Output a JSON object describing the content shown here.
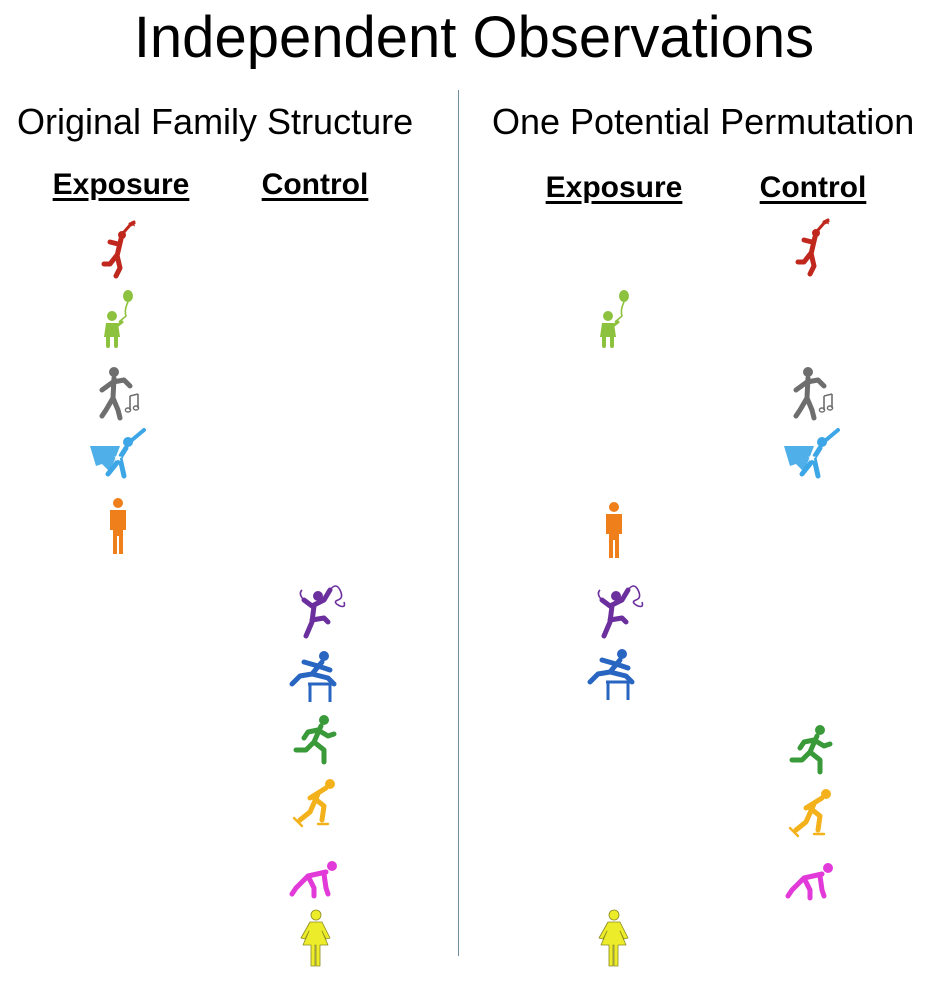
{
  "title": "Independent Observations",
  "panels": [
    {
      "title": "Original Family Structure",
      "columns": [
        "Exposure",
        "Control"
      ],
      "members": [
        {
          "icon": "jumping-star-person-icon",
          "color": "#c0281e",
          "column": 0
        },
        {
          "icon": "child-balloon-icon",
          "color": "#8dc23f",
          "column": 0
        },
        {
          "icon": "dancing-music-person-icon",
          "color": "#6e6e6e",
          "column": 0
        },
        {
          "icon": "superhero-flying-icon",
          "color": "#3ca6e6",
          "column": 0
        },
        {
          "icon": "standing-man-icon",
          "color": "#ef7f1a",
          "column": 0
        },
        {
          "icon": "ribbon-gymnast-icon",
          "color": "#6b2f9e",
          "column": 1
        },
        {
          "icon": "hurdler-icon",
          "color": "#2966c2",
          "column": 1
        },
        {
          "icon": "runner-icon",
          "color": "#3a9a3a",
          "column": 1
        },
        {
          "icon": "speed-skater-icon",
          "color": "#f3b21c",
          "column": 1
        },
        {
          "icon": "sprinter-start-icon",
          "color": "#e23ad8",
          "column": 1
        },
        {
          "icon": "standing-woman-icon",
          "color": "#ecec2a",
          "column": 1
        }
      ]
    },
    {
      "title": "One Potential Permutation",
      "columns": [
        "Exposure",
        "Control"
      ],
      "members": [
        {
          "icon": "jumping-star-person-icon",
          "color": "#c0281e",
          "column": 1
        },
        {
          "icon": "child-balloon-icon",
          "color": "#8dc23f",
          "column": 0
        },
        {
          "icon": "dancing-music-person-icon",
          "color": "#6e6e6e",
          "column": 1
        },
        {
          "icon": "superhero-flying-icon",
          "color": "#3ca6e6",
          "column": 1
        },
        {
          "icon": "standing-man-icon",
          "color": "#ef7f1a",
          "column": 0
        },
        {
          "icon": "ribbon-gymnast-icon",
          "color": "#6b2f9e",
          "column": 0
        },
        {
          "icon": "hurdler-icon",
          "color": "#2966c2",
          "column": 0
        },
        {
          "icon": "runner-icon",
          "color": "#3a9a3a",
          "column": 1
        },
        {
          "icon": "speed-skater-icon",
          "color": "#f3b21c",
          "column": 1
        },
        {
          "icon": "sprinter-start-icon",
          "color": "#e23ad8",
          "column": 1
        },
        {
          "icon": "standing-woman-icon",
          "color": "#ecec2a",
          "column": 0
        }
      ]
    }
  ]
}
